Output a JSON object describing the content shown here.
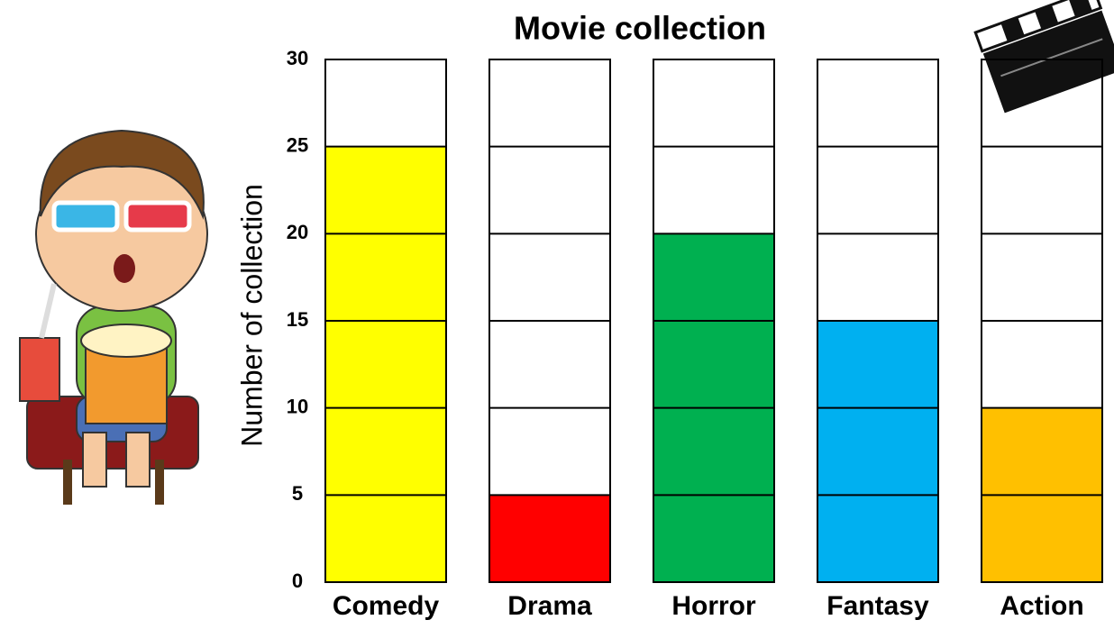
{
  "chart_data": {
    "type": "bar",
    "title": "Movie collection",
    "y_label": "Number of collection",
    "categories": [
      "Comedy",
      "Drama",
      "Horror",
      "Fantasy",
      "Action"
    ],
    "values": [
      25,
      5,
      20,
      15,
      10
    ],
    "colors": [
      "#ffff00",
      "#ff0000",
      "#00b050",
      "#00b0f0",
      "#ffc000"
    ],
    "ylim": [
      0,
      30
    ],
    "yticks": [
      0,
      5,
      10,
      15,
      20,
      25,
      30
    ],
    "grid": true
  }
}
